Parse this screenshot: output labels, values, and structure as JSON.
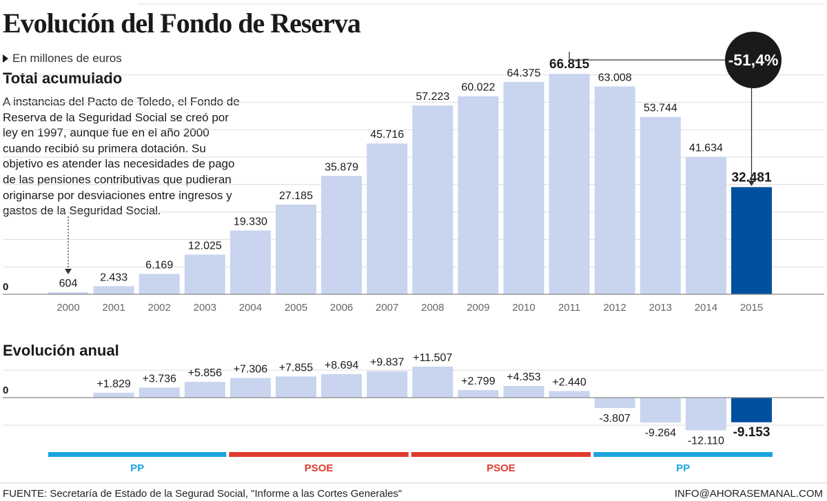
{
  "header": {
    "title": "Evolución del Fondo de Reserva",
    "unit": "En millones de euros"
  },
  "description": "A instancias del Pacto de Toledo, el Fondo de Reserva de la Seguridad Social se creó por ley en 1997, aunque fue en el año 2000 cuando recibió su primera dotación. Su objetivo es atender las necesidades de pago de las pensiones contributivas que pudieran originarse por desviaciones entre ingresos y gastos de la Seguridad Social.",
  "footer": {
    "source": "FUENTE: Secretaría de Estado de la Segurad Social, \"Informe a las Cortes Generales\"",
    "credit": "INFO@AHORASEMANAL.COM"
  },
  "colors": {
    "bar": "#c9d4ef",
    "highlight": "#0050a0",
    "pp": "#1ba3e0",
    "psoe": "#e03a2f",
    "badge": "#1a1a1a"
  },
  "chart_data": [
    {
      "type": "bar",
      "title": "Total acumulado",
      "zero_label": "0",
      "categories": [
        "2000",
        "2001",
        "2002",
        "2003",
        "2004",
        "2005",
        "2006",
        "2007",
        "2008",
        "2009",
        "2010",
        "2011",
        "2012",
        "2013",
        "2014",
        "2015"
      ],
      "values": [
        604,
        2433,
        6169,
        12025,
        19330,
        27185,
        35879,
        45716,
        57223,
        60022,
        64375,
        66815,
        63008,
        53744,
        41634,
        32481
      ],
      "labels": [
        "604",
        "2.433",
        "6.169",
        "12.025",
        "19.330",
        "27.185",
        "35.879",
        "45.716",
        "57.223",
        "60.022",
        "64.375",
        "66.815",
        "63.008",
        "53.744",
        "41.634",
        "32.481"
      ],
      "bold_labels": [
        "2011",
        "2015"
      ],
      "highlight_category": "2015",
      "ylim": [
        0,
        75000
      ],
      "grid": true,
      "annotation": {
        "text": "-51,4%",
        "from": "2011",
        "to": "2015"
      }
    },
    {
      "type": "bar",
      "title": "Evolución anual",
      "zero_label": "0",
      "categories": [
        "2001",
        "2002",
        "2003",
        "2004",
        "2005",
        "2006",
        "2007",
        "2008",
        "2009",
        "2010",
        "2011",
        "2012",
        "2013",
        "2014",
        "2015"
      ],
      "values": [
        1829,
        3736,
        5856,
        7306,
        7855,
        8694,
        9837,
        11507,
        2799,
        4353,
        2440,
        -3807,
        -9264,
        -12110,
        -9153
      ],
      "labels": [
        "+1.829",
        "+3.736",
        "+5.856",
        "+7.306",
        "+7.855",
        "+8.694",
        "+9.837",
        "+11.507",
        "+2.799",
        "+4.353",
        "+2.440",
        "-3.807",
        "-9.264",
        "-12.110",
        "-9.153"
      ],
      "bold_labels": [
        "2015"
      ],
      "highlight_category": "2015",
      "grid": true,
      "periods": [
        {
          "label": "PP",
          "from": "2000",
          "to": "2003",
          "color": "#1ba3e0"
        },
        {
          "label": "PSOE",
          "from": "2004",
          "to": "2007",
          "color": "#e03a2f"
        },
        {
          "label": "PSOE",
          "from": "2008",
          "to": "2011",
          "color": "#e03a2f"
        },
        {
          "label": "PP",
          "from": "2012",
          "to": "2015",
          "color": "#1ba3e0"
        }
      ]
    }
  ]
}
